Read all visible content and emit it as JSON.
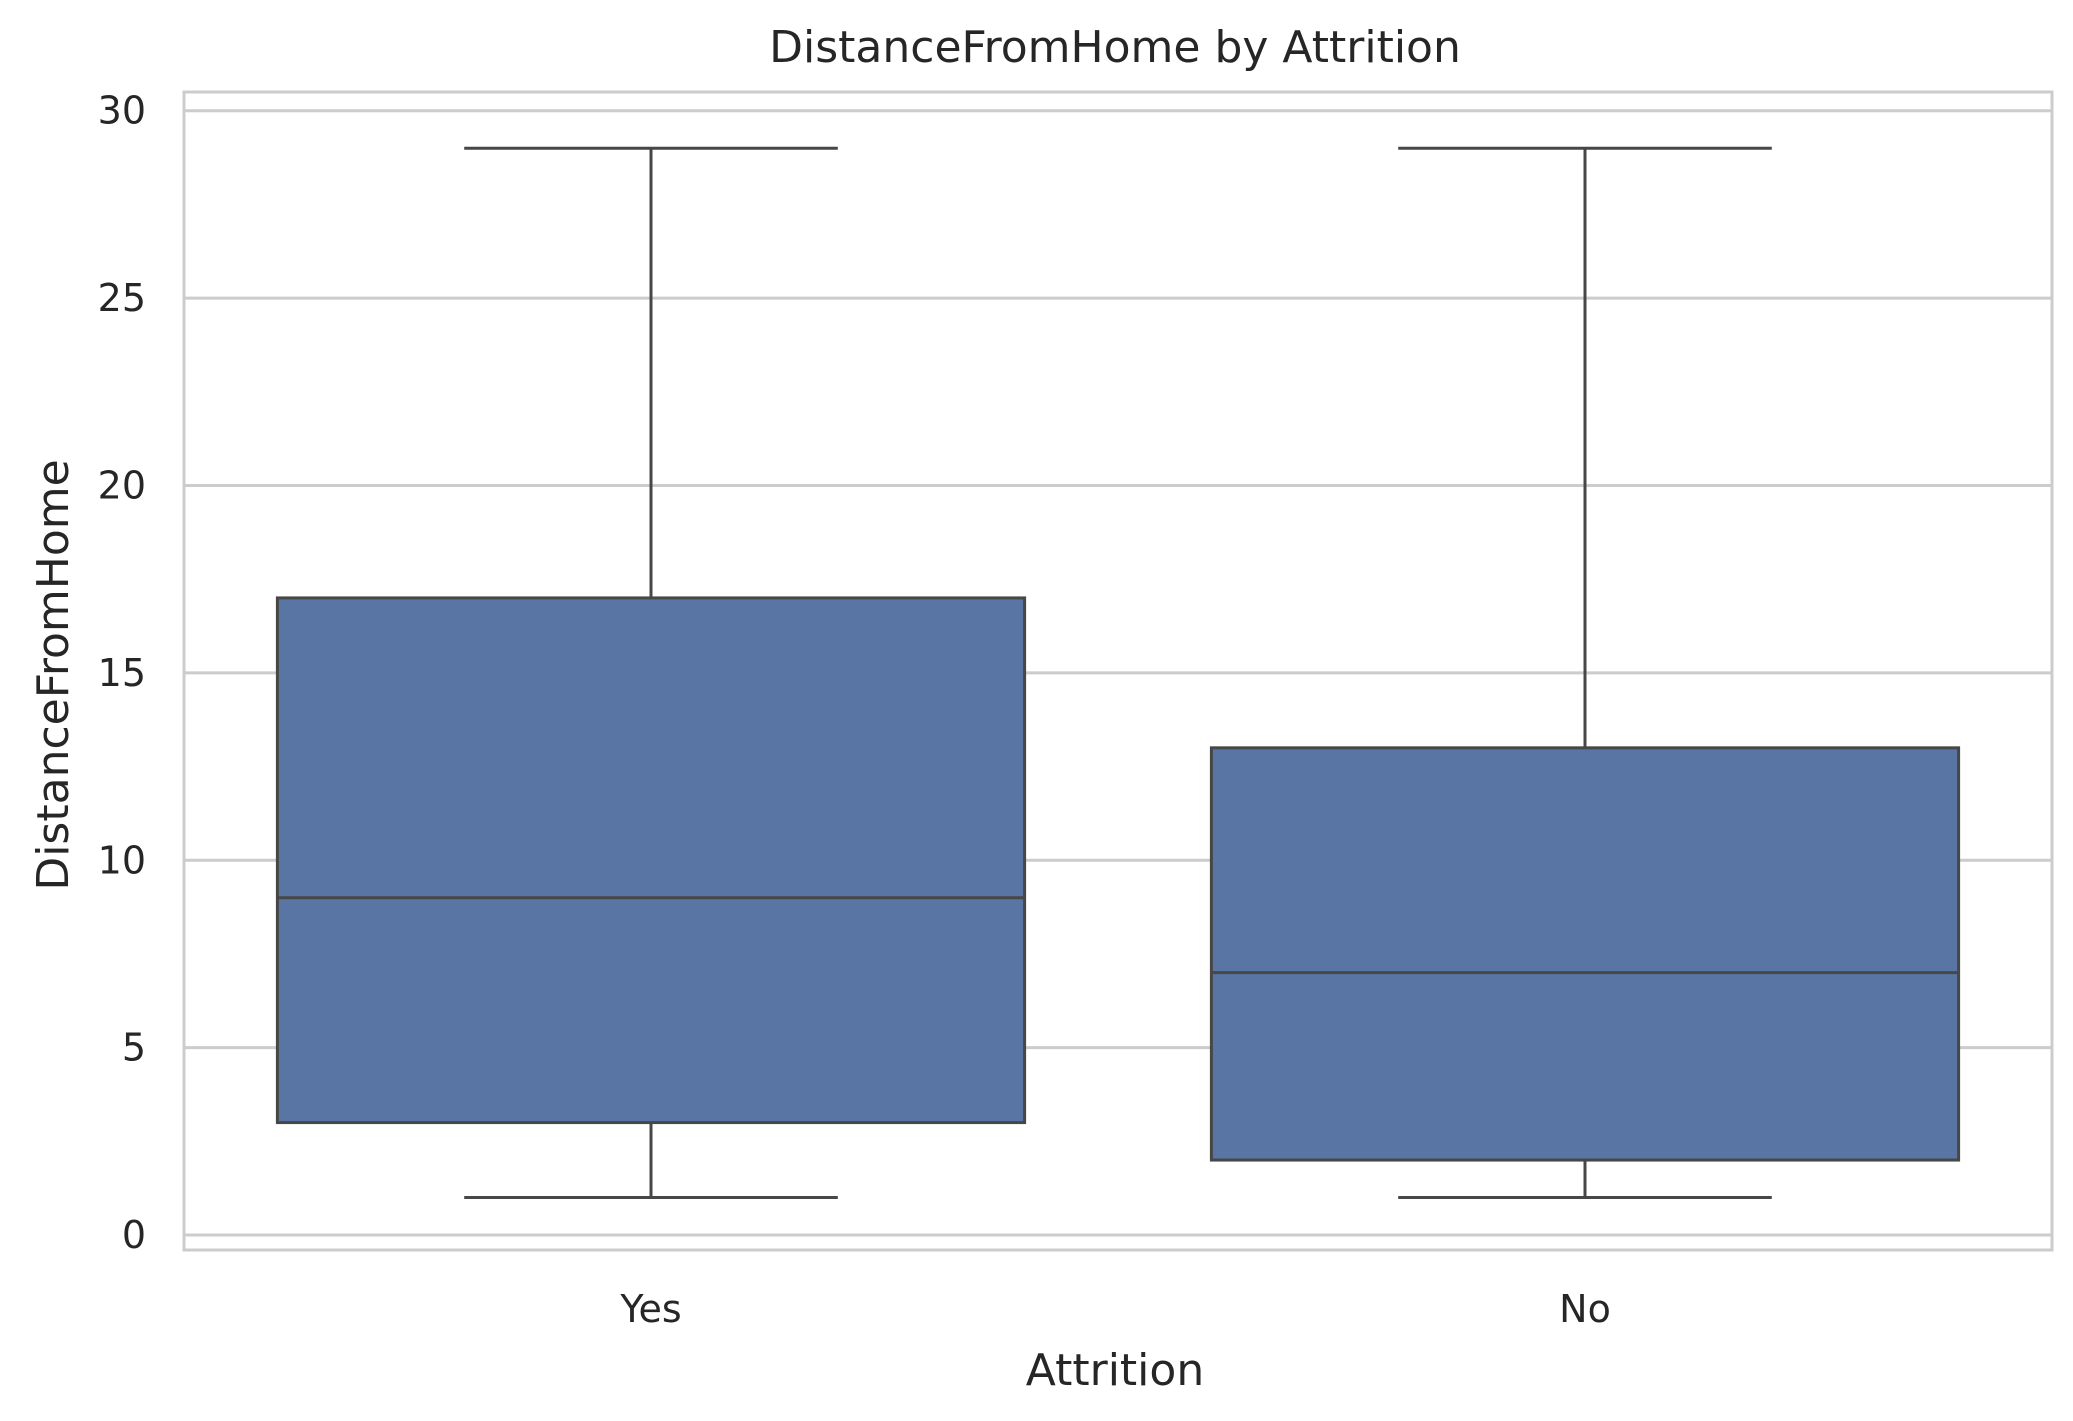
{
  "chart_data": {
    "type": "box",
    "title": "DistanceFromHome by Attrition",
    "xlabel": "Attrition",
    "ylabel": "DistanceFromHome",
    "categories": [
      "Yes",
      "No"
    ],
    "boxes": [
      {
        "category": "Yes",
        "whisker_low": 1,
        "q1": 3,
        "median": 9,
        "q3": 17,
        "whisker_high": 29
      },
      {
        "category": "No",
        "whisker_low": 1,
        "q1": 2,
        "median": 7,
        "q3": 13,
        "whisker_high": 29
      }
    ],
    "ylim": [
      -0.4,
      30.5
    ],
    "yticks": [
      0,
      5,
      10,
      15,
      20,
      25,
      30
    ],
    "grid": true,
    "colors": {
      "box_fill": "#5975a4",
      "line": "#474747",
      "grid": "#cccccc",
      "frame": "#cccccc"
    }
  }
}
